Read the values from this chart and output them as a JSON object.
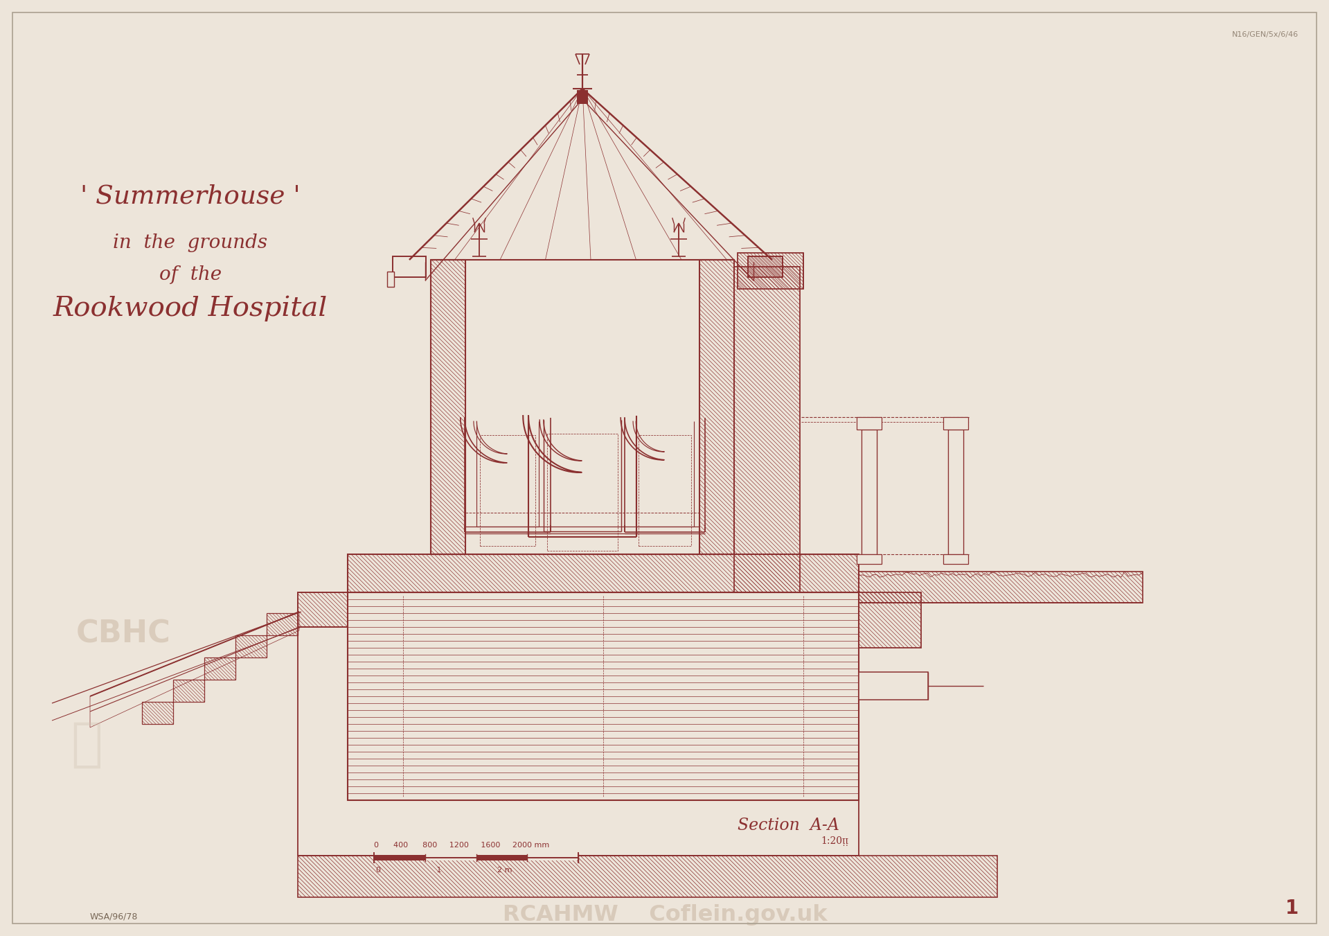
{
  "bg": "#ede5da",
  "dc": "#8b3030",
  "fig_w": 19.19,
  "fig_h": 13.51,
  "dpi": 100,
  "t1": "' Summerhouse '",
  "t2": "in  the  grounds",
  "t3": "of  the",
  "t4": "Rookwood Hospital",
  "sec": "Section  A-A",
  "sec_sub": "1:20ᴉᴉ",
  "ref1": "WSA/96/78",
  "ref2": "N16/GEN/5x/6/46",
  "pg": "1"
}
